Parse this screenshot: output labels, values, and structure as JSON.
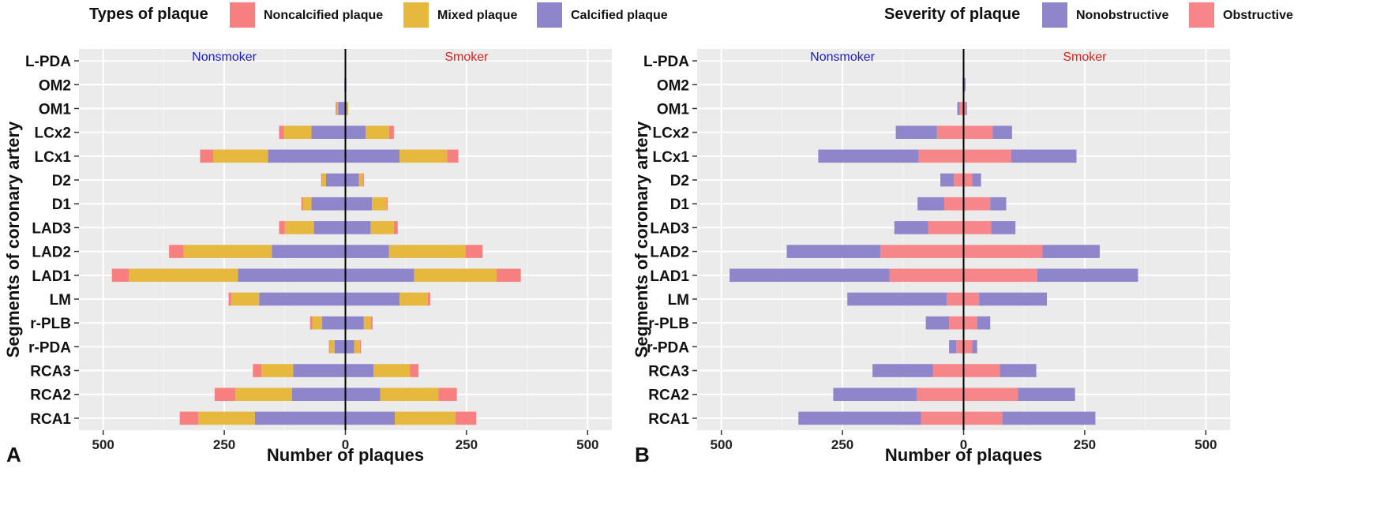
{
  "segments": [
    "RCA1",
    "RCA2",
    "RCA3",
    "r-PDA",
    "r-PLB",
    "LM",
    "LAD1",
    "LAD2",
    "LAD3",
    "D1",
    "D2",
    "LCx1",
    "LCx2",
    "OM1",
    "OM2",
    "L-PDA"
  ],
  "chart_data": [
    {
      "type": "bar",
      "orientation": "horizontal-stacked-pyramid",
      "panel": "A",
      "xlabel": "Number of plaques",
      "ylabel": "Segments of coronary artery",
      "xlim": [
        -550,
        550
      ],
      "xticks": [
        -500,
        -250,
        0,
        250,
        500
      ],
      "xtick_labels": [
        "500",
        "250",
        "0",
        "250",
        "500"
      ],
      "left_group_label": "Nonsmoker",
      "right_group_label": "Smoker",
      "legend_title": "Types of plaque",
      "categories": [
        "RCA1",
        "RCA2",
        "RCA3",
        "r-PDA",
        "r-PLB",
        "LM",
        "LAD1",
        "LAD2",
        "LAD3",
        "D1",
        "D2",
        "LCx1",
        "LCx2",
        "OM1",
        "OM2",
        "L-PDA"
      ],
      "series": [
        {
          "name": "Calcified plaque",
          "color": "#8e85cb",
          "nonsmoker": [
            187,
            110,
            108,
            22,
            48,
            178,
            222,
            152,
            65,
            70,
            40,
            160,
            70,
            15,
            2,
            0
          ],
          "smoker": [
            102,
            72,
            58,
            18,
            38,
            112,
            142,
            90,
            52,
            55,
            28,
            112,
            42,
            3,
            2,
            0
          ]
        },
        {
          "name": "Mixed plaque",
          "color": "#e6b83e",
          "nonsmoker": [
            117,
            117,
            65,
            10,
            20,
            58,
            225,
            182,
            60,
            18,
            8,
            113,
            57,
            3,
            0,
            0
          ],
          "smoker": [
            125,
            120,
            75,
            12,
            15,
            58,
            170,
            158,
            48,
            30,
            8,
            98,
            48,
            3,
            0,
            0
          ]
        },
        {
          "name": "Noncalcified plaque",
          "color": "#f77f7f",
          "nonsmoker": [
            38,
            43,
            18,
            2,
            5,
            5,
            35,
            30,
            12,
            3,
            2,
            27,
            10,
            2,
            0,
            0
          ],
          "smoker": [
            43,
            38,
            18,
            2,
            3,
            5,
            50,
            35,
            8,
            2,
            2,
            23,
            10,
            0,
            0,
            0
          ]
        }
      ]
    },
    {
      "type": "bar",
      "orientation": "horizontal-stacked-pyramid",
      "panel": "B",
      "xlabel": "Number of plaques",
      "ylabel": "Segments of coronary artery",
      "xlim": [
        -550,
        550
      ],
      "xticks": [
        -500,
        -250,
        0,
        250,
        500
      ],
      "xtick_labels": [
        "500",
        "250",
        "0",
        "250",
        "500"
      ],
      "left_group_label": "Nonsmoker",
      "right_group_label": "Smoker",
      "legend_title": "Severity of plaque",
      "categories": [
        "RCA1",
        "RCA2",
        "RCA3",
        "r-PDA",
        "r-PLB",
        "LM",
        "LAD1",
        "LAD2",
        "LAD3",
        "D1",
        "D2",
        "LCx1",
        "LCx2",
        "OM1",
        "OM2",
        "L-PDA"
      ],
      "series": [
        {
          "name": "Obstructive",
          "color": "#f7868a",
          "nonsmoker": [
            88,
            97,
            63,
            15,
            30,
            35,
            153,
            172,
            73,
            40,
            20,
            93,
            55,
            8,
            0,
            0
          ],
          "smoker": [
            80,
            112,
            75,
            18,
            28,
            32,
            152,
            163,
            57,
            55,
            18,
            98,
            60,
            5,
            2,
            0
          ]
        },
        {
          "name": "Nonobstructive",
          "color": "#8e85cb",
          "nonsmoker": [
            253,
            172,
            125,
            15,
            48,
            205,
            330,
            193,
            70,
            55,
            28,
            207,
            85,
            5,
            2,
            0
          ],
          "smoker": [
            192,
            118,
            75,
            10,
            27,
            140,
            208,
            118,
            50,
            33,
            18,
            135,
            40,
            2,
            2,
            0
          ]
        }
      ]
    }
  ]
}
